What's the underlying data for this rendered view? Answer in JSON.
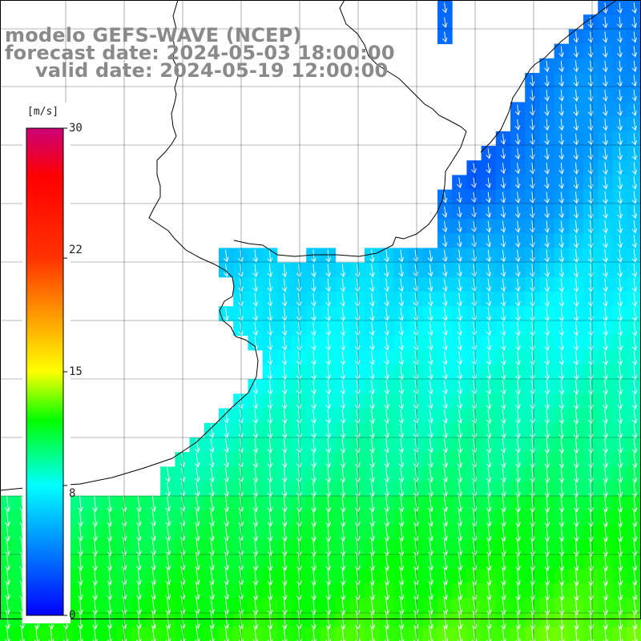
{
  "title": {
    "line1": "modelo GEFS-WAVE (NCEP)",
    "line2": "forecast date: 2024-05-03 18:00:00",
    "line3": "valid date: 2024-05-19 12:00:00"
  },
  "colorbar": {
    "unit": "[m/s]",
    "ticks": [
      "30",
      "22",
      "15",
      "8",
      "0"
    ],
    "tick_values": [
      30,
      22,
      15,
      8,
      0
    ],
    "range": [
      0,
      30
    ],
    "stops": [
      {
        "value": 0,
        "color": "#0000ff"
      },
      {
        "value": 8,
        "color": "#00ffff"
      },
      {
        "value": 12,
        "color": "#00ff00"
      },
      {
        "value": 15,
        "color": "#ffff00"
      },
      {
        "value": 22,
        "color": "#ff3300"
      },
      {
        "value": 27,
        "color": "#ff0000"
      },
      {
        "value": 30,
        "color": "#cc0077"
      }
    ]
  },
  "map": {
    "land_color": "#ffffff",
    "coast_color": "#000000",
    "grid_color": "#000000",
    "arrow_color": "#ffffff",
    "arrow_direction": "southward",
    "field_description": "wind speed over ocean, ~5-8 m/s near coast rising to ~11-13 m/s offshore south"
  }
}
